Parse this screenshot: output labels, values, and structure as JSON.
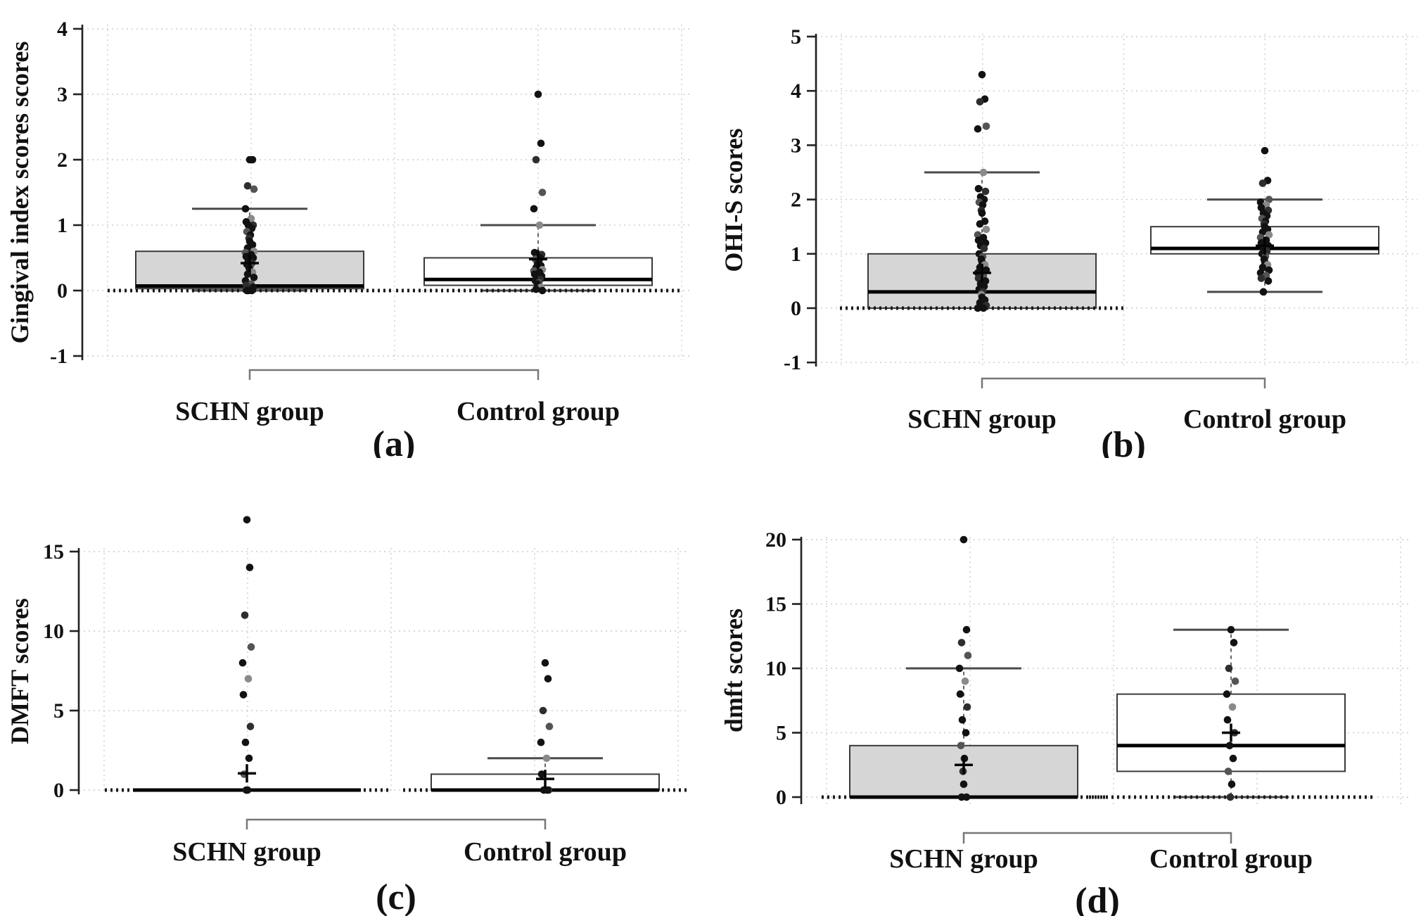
{
  "figure_background": "#ffffff",
  "styles": {
    "schn_box_fill": "#d6d6d6",
    "control_box_fill": "#ffffff",
    "box_stroke": "#3a3a3a",
    "median_color": "#000000",
    "point_color": "#121212",
    "point_color_gray": "#8a8a8a",
    "mean_marker_color": "#050505",
    "grid_color": "#cccccc",
    "axis_color": "#222222",
    "whisker_color": "#4a4a4a",
    "bracket_color": "#777777"
  },
  "chart_data": [
    {
      "type": "box",
      "panel_label": "(a)",
      "ylabel": "Gingival index scores scores",
      "xlabel": "",
      "yticks": [
        -1,
        0,
        1,
        2,
        3,
        4
      ],
      "ylim": [
        -1.1,
        4.1
      ],
      "grid": true,
      "legend": "none",
      "categories": [
        "SCHN group",
        "Control group"
      ],
      "series": [
        {
          "name": "SCHN group",
          "box_fill": "#d6d6d6",
          "q1": 0.03,
          "median": 0.07,
          "q3": 0.6,
          "mean": 0.42,
          "whisker_low": 0,
          "whisker_high": 1.25,
          "zero_row": true,
          "points": [
            2,
            2,
            1.6,
            1.55,
            1.25,
            1.1,
            1.05,
            1,
            1,
            0.95,
            0.9,
            0.85,
            0.8,
            0.75,
            0.7,
            0.65,
            0.6,
            0.58,
            0.55,
            0.52,
            0.5,
            0.45,
            0.42,
            0.4,
            0.38,
            0.35,
            0.3,
            0.28,
            0.25,
            0.2,
            0.15,
            0.1,
            0.08,
            0.05,
            0,
            0,
            0
          ]
        },
        {
          "name": "Control group",
          "box_fill": "#ffffff",
          "q1": 0.08,
          "median": 0.17,
          "q3": 0.5,
          "mean": 0.48,
          "whisker_low": 0,
          "whisker_high": 1,
          "zero_row": true,
          "points": [
            3,
            2.25,
            2,
            1.5,
            1.25,
            1,
            0.58,
            0.55,
            0.52,
            0.5,
            0.48,
            0.45,
            0.42,
            0.4,
            0.38,
            0.35,
            0.32,
            0.3,
            0.28,
            0.25,
            0.22,
            0.2,
            0.17,
            0.15,
            0.12,
            0.1,
            0.08,
            0.05,
            0.02,
            0
          ]
        }
      ]
    },
    {
      "type": "box",
      "panel_label": "(b)",
      "ylabel": "OHI-S scores",
      "xlabel": "",
      "yticks": [
        -1,
        0,
        1,
        2,
        3,
        4,
        5
      ],
      "ylim": [
        -1.1,
        5.1
      ],
      "grid": true,
      "legend": "none",
      "categories": [
        "SCHN group",
        "Control group"
      ],
      "series": [
        {
          "name": "SCHN group",
          "box_fill": "#d6d6d6",
          "q1": 0,
          "median": 0.3,
          "q3": 1,
          "mean": 0.65,
          "whisker_low": 0,
          "whisker_high": 2.5,
          "zero_row": true,
          "points": [
            4.3,
            3.85,
            3.8,
            3.35,
            3.3,
            2.5,
            2.2,
            2.15,
            2.05,
            2,
            1.95,
            1.9,
            1.8,
            1.75,
            1.6,
            1.55,
            1.45,
            1.35,
            1.3,
            1.25,
            1.2,
            1.15,
            1.1,
            1,
            0.95,
            0.9,
            0.85,
            0.8,
            0.75,
            0.7,
            0.65,
            0.6,
            0.55,
            0.5,
            0.45,
            0.4,
            0.35,
            0.3,
            0.25,
            0.2,
            0.15,
            0.1,
            0.05,
            0,
            0
          ]
        },
        {
          "name": "Control group",
          "box_fill": "#ffffff",
          "q1": 1,
          "median": 1.1,
          "q3": 1.5,
          "mean": 1.15,
          "whisker_low": 0.3,
          "whisker_high": 2,
          "zero_row": false,
          "points": [
            2.9,
            2.35,
            2.3,
            2,
            1.95,
            1.9,
            1.85,
            1.8,
            1.75,
            1.7,
            1.65,
            1.6,
            1.55,
            1.5,
            1.45,
            1.4,
            1.35,
            1.3,
            1.25,
            1.2,
            1.15,
            1.1,
            1.05,
            1,
            0.95,
            0.9,
            0.85,
            0.8,
            0.75,
            0.7,
            0.65,
            0.6,
            0.55,
            0.5,
            0.3
          ]
        }
      ]
    },
    {
      "type": "box",
      "panel_label": "(c)",
      "ylabel": "DMFT scores",
      "xlabel": "",
      "yticks": [
        0,
        5,
        10,
        15
      ],
      "ylim": [
        -0.3,
        17.2
      ],
      "grid": true,
      "legend": "none",
      "categories": [
        "SCHN group",
        "Control group"
      ],
      "series": [
        {
          "name": "SCHN group",
          "box_fill": "#d6d6d6",
          "q1": 0,
          "median": 0,
          "q3": 0,
          "mean": 1.05,
          "whisker_low": 0,
          "whisker_high": 0,
          "zero_row": true,
          "points": [
            17,
            14,
            11,
            9,
            8,
            7,
            6,
            4,
            3,
            2,
            1,
            0,
            0,
            0
          ]
        },
        {
          "name": "Control group",
          "box_fill": "#ffffff",
          "q1": 0,
          "median": 0,
          "q3": 1,
          "mean": 0.7,
          "whisker_low": 0,
          "whisker_high": 2,
          "zero_row": true,
          "points": [
            8,
            7,
            5,
            4,
            3,
            2,
            1,
            0,
            0,
            0
          ]
        }
      ]
    },
    {
      "type": "box",
      "panel_label": "(d)",
      "ylabel": "dmft scores",
      "xlabel": "",
      "yticks": [
        0,
        5,
        10,
        15,
        20
      ],
      "ylim": [
        -0.5,
        20.2
      ],
      "grid": true,
      "legend": "none",
      "categories": [
        "SCHN group",
        "Control group"
      ],
      "series": [
        {
          "name": "SCHN group",
          "box_fill": "#d6d6d6",
          "q1": 0,
          "median": 0,
          "q3": 4,
          "mean": 2.5,
          "whisker_low": 0,
          "whisker_high": 10,
          "zero_row": true,
          "points": [
            20,
            13,
            12,
            11,
            10,
            9,
            8,
            7,
            6,
            5,
            4,
            3,
            2,
            1,
            0,
            0
          ]
        },
        {
          "name": "Control group",
          "box_fill": "#ffffff",
          "q1": 2,
          "median": 4,
          "q3": 8,
          "mean": 5,
          "whisker_low": 0,
          "whisker_high": 13,
          "zero_row": true,
          "points": [
            13,
            12,
            10,
            9,
            8,
            7,
            6,
            5,
            4,
            3,
            2,
            1,
            0
          ]
        }
      ]
    }
  ]
}
